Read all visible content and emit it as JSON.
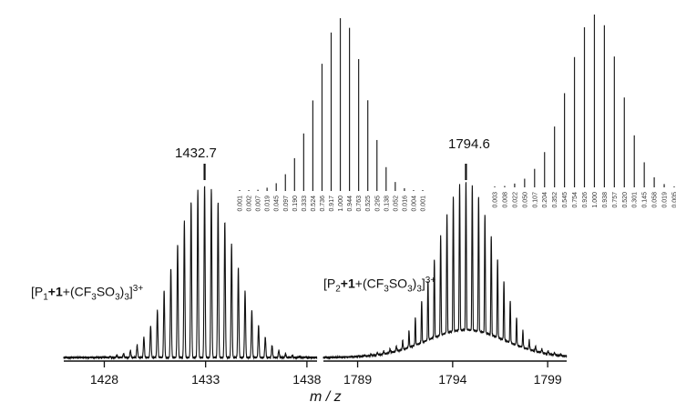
{
  "x_axis_label": "m / z",
  "chart_data": [
    {
      "type": "line",
      "panel": "experimental-left",
      "xlim": [
        1426,
        1438.5
      ],
      "xticks": [
        1428,
        1433,
        1438
      ],
      "peak_center": 1432.95,
      "peak_spacing": 0.333,
      "peak_label": "1432.7",
      "species_parts": [
        "[P",
        "1",
        "+",
        "1",
        "+(CF",
        "3",
        "SO",
        "3",
        ")",
        "3",
        "]",
        "3+"
      ]
    },
    {
      "type": "line",
      "panel": "experimental-right",
      "xlim": [
        1787.2,
        1800
      ],
      "xticks": [
        1789,
        1794,
        1799
      ],
      "peak_center": 1794.7,
      "peak_spacing": 0.333,
      "peak_label": "1794.6",
      "species_parts": [
        "[P",
        "2",
        "+",
        "1",
        "+(CF",
        "3",
        "SO",
        "3",
        ")",
        "3",
        "]",
        "3+"
      ]
    },
    {
      "type": "bar",
      "panel": "simulated-left",
      "values": [
        0.001,
        0.002,
        0.007,
        0.019,
        0.045,
        0.097,
        0.19,
        0.333,
        0.524,
        0.736,
        0.917,
        1.0,
        0.944,
        0.763,
        0.525,
        0.295,
        0.138,
        0.052,
        0.016,
        0.004,
        0.001
      ],
      "labels": [
        "0.001",
        "0.002",
        "0.007",
        "0.019",
        "0.045",
        "0.097",
        "0.190",
        "0.333",
        "0.524",
        "0.736",
        "0.917",
        "1.000",
        "0.944",
        "0.763",
        "0.525",
        "0.295",
        "0.138",
        "0.052",
        "0.016",
        "0.004",
        "0.001"
      ]
    },
    {
      "type": "bar",
      "panel": "simulated-right",
      "values": [
        0.003,
        0.008,
        0.022,
        0.05,
        0.107,
        0.204,
        0.352,
        0.545,
        0.754,
        0.926,
        1.0,
        0.938,
        0.757,
        0.52,
        0.301,
        0.145,
        0.058,
        0.019,
        0.005
      ],
      "labels": [
        "0.003",
        "0.008",
        "0.022",
        "0.050",
        "0.107",
        "0.204",
        "0.352",
        "0.545",
        "0.754",
        "0.926",
        "1.000",
        "0.938",
        "0.757",
        "0.520",
        "0.301",
        "0.145",
        "0.058",
        "0.019",
        "0.005"
      ]
    }
  ]
}
